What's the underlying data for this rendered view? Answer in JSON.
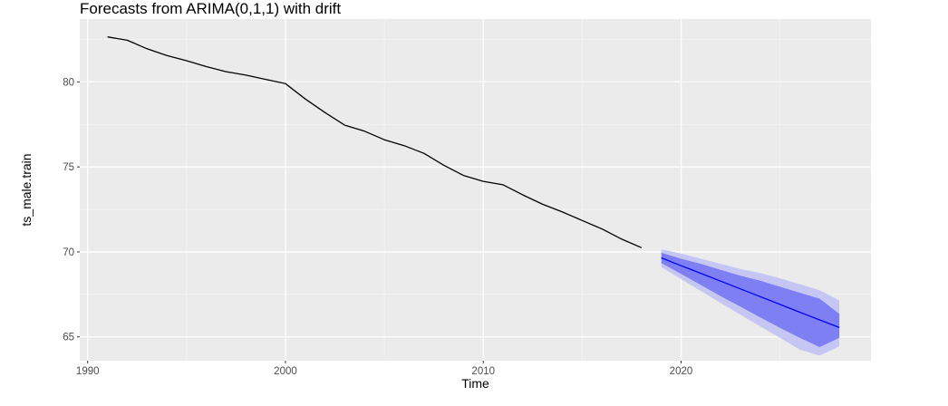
{
  "chart_data": {
    "type": "line",
    "title": "Forecasts from ARIMA(0,1,1) with drift",
    "xlabel": "Time",
    "ylabel": "ts_male.train",
    "xlim": [
      1989.6,
      2029.6
    ],
    "ylim": [
      63.6,
      83.7
    ],
    "x_ticks": [
      1990,
      2000,
      2010,
      2020
    ],
    "y_ticks": [
      65,
      70,
      75,
      80
    ],
    "grid": true,
    "legend": "none",
    "colors": {
      "panel_background": "#ebebeb",
      "grid_major": "#ffffff",
      "observed_line": "#000000",
      "forecast_line": "#0000ff",
      "interval_80": "#7f7ff4",
      "interval_95": "#c6c6f4"
    },
    "series": [
      {
        "x": [
          1991,
          1992,
          1993,
          1994,
          1995,
          1996,
          1997,
          1998,
          1999,
          2000,
          2001,
          2002,
          2003,
          2004,
          2005,
          2006,
          2007,
          2008,
          2009,
          2010,
          2011,
          2012,
          2013,
          2014,
          2015,
          2016,
          2017,
          2018
        ],
        "values": [
          82.65,
          82.45,
          81.95,
          81.55,
          81.25,
          80.9,
          80.6,
          80.4,
          80.15,
          79.9,
          79.0,
          78.2,
          77.45,
          77.1,
          76.6,
          76.25,
          75.8,
          75.1,
          74.5,
          74.15,
          73.95,
          73.35,
          72.8,
          72.35,
          71.85,
          71.35,
          70.75,
          70.25
        ]
      },
      {
        "x": [
          2019,
          2020,
          2021,
          2022,
          2023,
          2024,
          2025,
          2026,
          2027,
          2028
        ],
        "values": [
          69.65,
          69.19,
          68.74,
          68.28,
          67.82,
          67.37,
          66.91,
          66.45,
          66.0,
          65.55
        ],
        "lo80": [
          69.35,
          68.7,
          68.05,
          67.4,
          66.78,
          66.15,
          65.53,
          64.95,
          64.4,
          64.95
        ],
        "hi80": [
          69.95,
          69.6,
          69.3,
          68.95,
          68.6,
          68.3,
          67.95,
          67.6,
          67.25,
          66.35
        ],
        "lo95": [
          69.1,
          68.4,
          67.7,
          67.0,
          66.3,
          65.62,
          64.95,
          64.25,
          63.9,
          64.45
        ],
        "hi95": [
          70.15,
          69.9,
          69.6,
          69.3,
          69.0,
          68.75,
          68.45,
          68.1,
          67.75,
          67.15
        ]
      }
    ]
  }
}
